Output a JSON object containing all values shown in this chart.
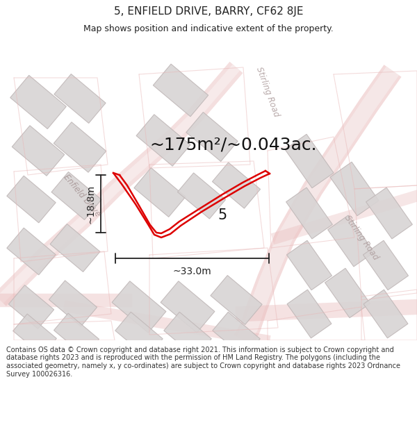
{
  "title": "5, ENFIELD DRIVE, BARRY, CF62 8JE",
  "subtitle": "Map shows position and indicative extent of the property.",
  "area_text": "~175m²/~0.043ac.",
  "dim_width": "~33.0m",
  "dim_height": "~18.8m",
  "property_number": "5",
  "footer": "Contains OS data © Crown copyright and database right 2021. This information is subject to Crown copyright and database rights 2023 and is reproduced with the permission of HM Land Registry. The polygons (including the associated geometry, namely x, y co-ordinates) are subject to Crown copyright and database rights 2023 Ordnance Survey 100026316.",
  "bg_color": "#ffffff",
  "building_fill": "#d8d4d4",
  "building_edge": "#c0b8b8",
  "road_outline": "#e8b8b8",
  "property_color": "#dd0000",
  "dim_color": "#222222",
  "title_color": "#222222",
  "road_label_color": "#b8a8a8",
  "enfield_label_color": "#a89898",
  "stirling_label_color": "#b0a0a0",
  "footer_color": "#333333",
  "title_fs": 11,
  "subtitle_fs": 9,
  "area_fs": 18,
  "dim_fs": 10,
  "prop_num_fs": 15,
  "road_label_fs": 8.5,
  "footer_fs": 7
}
